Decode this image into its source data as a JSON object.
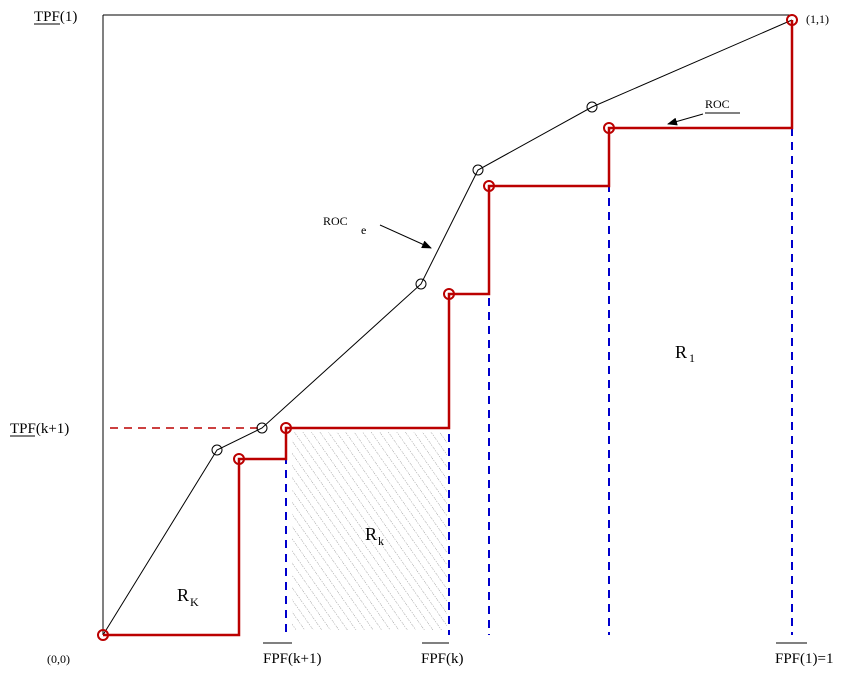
{
  "diagram": {
    "corner_labels": {
      "origin": "(0,0)",
      "top_right": "(1,1)"
    },
    "y_labels": {
      "tpf_1": "TPF(1)",
      "tpf_k1": "TPF(k+1)"
    },
    "x_labels": {
      "fpf_k1": "FPF(k+1)",
      "fpf_k": "FPF(k)",
      "fpf_1": "FPF(1)=1"
    },
    "region_labels": {
      "r_k_left": {
        "main": "R",
        "sub": "K"
      },
      "r_k_hatched": {
        "main": "R",
        "sub": "k"
      },
      "r_1": {
        "main": "R",
        "sub": "1"
      }
    },
    "curve_labels": {
      "roc": "ROC",
      "roc_e": {
        "main": "ROC",
        "sub": "e"
      }
    },
    "colors": {
      "empirical_curve": "#bb0000",
      "dashed_verticals": "#0000cc",
      "outline": "#000000"
    }
  }
}
